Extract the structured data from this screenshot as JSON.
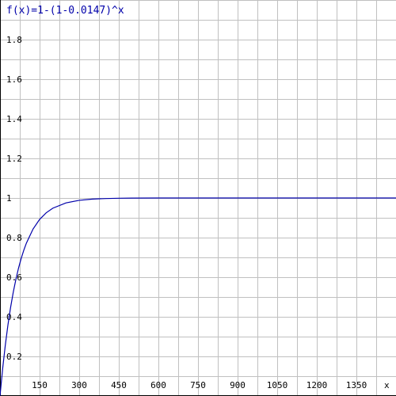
{
  "chart_data": {
    "type": "line",
    "title": "f(x)=1-(1-0.0147)^x",
    "xlabel": "x",
    "ylabel": "",
    "xlim": [
      0,
      1500
    ],
    "ylim": [
      0,
      2
    ],
    "grid": true,
    "x_ticks": [
      150,
      300,
      450,
      600,
      750,
      900,
      1050,
      1200,
      1350
    ],
    "x_tick_labels": [
      "150",
      "300",
      "450",
      "600",
      "750",
      "900",
      "1050",
      "1200",
      "1350"
    ],
    "y_ticks": [
      0.2,
      0.4,
      0.6,
      0.8,
      1,
      1.2,
      1.4,
      1.6,
      1.8
    ],
    "y_tick_labels": [
      "0.2",
      "0.4",
      "0.6",
      "0.8",
      "1",
      "1.2",
      "1.4",
      "1.6",
      "1.8"
    ],
    "series": [
      {
        "color": "#0000aa",
        "x": [
          0,
          10,
          20,
          30,
          40,
          50,
          60,
          70,
          80,
          90,
          100,
          125,
          150,
          175,
          200,
          250,
          300,
          350,
          400,
          450,
          500,
          600,
          750,
          900,
          1050,
          1200,
          1350,
          1500
        ],
        "y": [
          0,
          0.1374,
          0.2559,
          0.3582,
          0.4464,
          0.5225,
          0.5881,
          0.6448,
          0.6936,
          0.7358,
          0.7722,
          0.843,
          0.8917,
          0.9253,
          0.9485,
          0.9754,
          0.9883,
          0.9944,
          0.9973,
          0.9987,
          0.9994,
          0.9999,
          1,
          1,
          1,
          1,
          1,
          1
        ]
      }
    ]
  },
  "colors": {
    "grid": "#c0c0c0",
    "axis": "#000000",
    "curve": "#0000aa",
    "title": "#0000aa"
  }
}
